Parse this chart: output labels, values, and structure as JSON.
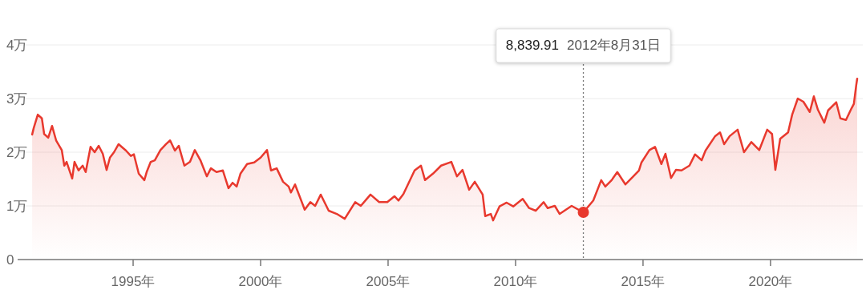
{
  "chart_data": {
    "type": "area",
    "color": "#e8392e",
    "grid": "y",
    "marker": "none",
    "x": [
      1991.04,
      1991.1,
      1991.26,
      1991.42,
      1991.51,
      1991.67,
      1991.82,
      1991.98,
      1992.2,
      1992.3,
      1992.39,
      1992.61,
      1992.7,
      1992.86,
      1993.02,
      1993.14,
      1993.33,
      1993.49,
      1993.65,
      1993.81,
      1993.96,
      1994.09,
      1994.25,
      1994.43,
      1994.72,
      1994.91,
      1995.03,
      1995.22,
      1995.44,
      1995.53,
      1995.69,
      1995.85,
      1996.07,
      1996.29,
      1996.45,
      1996.64,
      1996.79,
      1997.01,
      1997.23,
      1997.42,
      1997.64,
      1997.89,
      1998.05,
      1998.27,
      1998.52,
      1998.74,
      1998.9,
      1999.06,
      1999.21,
      1999.47,
      1999.75,
      2000.0,
      2000.25,
      2000.41,
      2000.63,
      2000.88,
      2001.1,
      2001.19,
      2001.35,
      2001.73,
      2001.95,
      2002.14,
      2002.36,
      2002.67,
      2002.99,
      2003.3,
      2003.71,
      2003.93,
      2004.31,
      2004.65,
      2004.97,
      2005.25,
      2005.41,
      2005.6,
      2006.04,
      2006.29,
      2006.45,
      2006.76,
      2007.08,
      2007.48,
      2007.7,
      2007.92,
      2008.18,
      2008.4,
      2008.71,
      2008.81,
      2009.03,
      2009.12,
      2009.37,
      2009.65,
      2009.91,
      2010.28,
      2010.53,
      2010.79,
      2011.1,
      2011.26,
      2011.54,
      2011.73,
      2012.2,
      2012.66,
      2013.05,
      2013.36,
      2013.52,
      2013.77,
      2013.99,
      2014.31,
      2014.62,
      2014.84,
      2014.94,
      2015.25,
      2015.47,
      2015.72,
      2015.88,
      2016.1,
      2016.29,
      2016.51,
      2016.82,
      2017.04,
      2017.3,
      2017.45,
      2017.83,
      2018.02,
      2018.18,
      2018.4,
      2018.71,
      2018.96,
      2019.25,
      2019.56,
      2019.87,
      2020.06,
      2020.19,
      2020.38,
      2020.69,
      2020.85,
      2021.07,
      2021.29,
      2021.54,
      2021.7,
      2021.86,
      2022.11,
      2022.26,
      2022.58,
      2022.74,
      2022.96,
      2023.18,
      2023.27,
      2023.36,
      2023.4
    ],
    "values": [
      2.33,
      2.45,
      2.7,
      2.63,
      2.34,
      2.27,
      2.49,
      2.22,
      2.04,
      1.75,
      1.82,
      1.51,
      1.82,
      1.66,
      1.75,
      1.63,
      2.1,
      2.0,
      2.12,
      1.97,
      1.67,
      1.9,
      2.0,
      2.15,
      2.03,
      1.93,
      1.96,
      1.6,
      1.48,
      1.63,
      1.82,
      1.85,
      2.04,
      2.15,
      2.22,
      2.03,
      2.12,
      1.75,
      1.82,
      2.04,
      1.85,
      1.55,
      1.7,
      1.63,
      1.66,
      1.33,
      1.43,
      1.36,
      1.6,
      1.78,
      1.81,
      1.9,
      2.04,
      1.66,
      1.7,
      1.45,
      1.36,
      1.25,
      1.4,
      0.93,
      1.07,
      1.0,
      1.21,
      0.91,
      0.85,
      0.76,
      1.07,
      1.0,
      1.21,
      1.07,
      1.07,
      1.18,
      1.1,
      1.22,
      1.66,
      1.75,
      1.48,
      1.6,
      1.75,
      1.82,
      1.55,
      1.67,
      1.3,
      1.45,
      1.21,
      0.81,
      0.85,
      0.73,
      0.99,
      1.06,
      0.99,
      1.13,
      0.96,
      0.91,
      1.07,
      0.96,
      1.0,
      0.85,
      1.0,
      0.88,
      1.1,
      1.48,
      1.36,
      1.48,
      1.63,
      1.4,
      1.55,
      1.66,
      1.81,
      2.04,
      2.1,
      1.78,
      1.97,
      1.52,
      1.67,
      1.66,
      1.75,
      1.96,
      1.85,
      2.03,
      2.3,
      2.37,
      2.15,
      2.3,
      2.42,
      2.0,
      2.19,
      2.04,
      2.42,
      2.34,
      1.67,
      2.25,
      2.37,
      2.7,
      3.0,
      2.94,
      2.75,
      3.04,
      2.79,
      2.55,
      2.78,
      2.93,
      2.63,
      2.6,
      2.82,
      2.9,
      3.24,
      3.37
    ],
    "xlim": [
      1990.47,
      2023.62
    ],
    "xticks": [
      {
        "value": 1995,
        "label": "1995年"
      },
      {
        "value": 2000,
        "label": "2000年"
      },
      {
        "value": 2005,
        "label": "2005年"
      },
      {
        "value": 2010,
        "label": "2010年"
      },
      {
        "value": 2015,
        "label": "2015年"
      },
      {
        "value": 2020,
        "label": "2020年"
      }
    ],
    "ylim": [
      0,
      4
    ],
    "yticks": [
      0,
      {
        "value": 1,
        "label": "1万"
      },
      {
        "value": 2,
        "label": "2万"
      },
      {
        "value": 3,
        "label": "3万"
      },
      {
        "value": 4,
        "label": "4万"
      }
    ],
    "ref_lines": [
      {
        "axis": "x",
        "value": 2012.66,
        "color": "#777777",
        "line_style": "dotted"
      }
    ],
    "annotations": [
      "8,839.91",
      "2012年8月31日"
    ]
  }
}
